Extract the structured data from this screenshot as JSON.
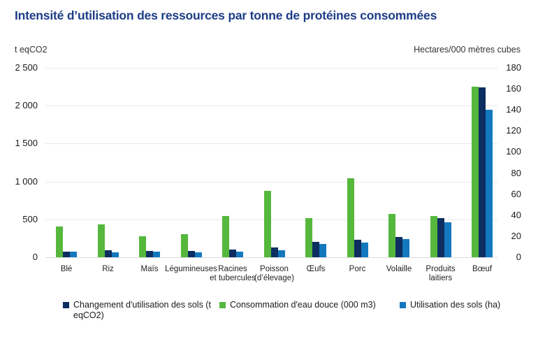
{
  "title": "Intensité d’utilisation des ressources par tonne de protéines consommées",
  "colors": {
    "title": "#1d3d87",
    "grid": "#e9e9e9",
    "baseline": "#dcdcdc",
    "text": "#1a1a1a"
  },
  "chart_data": {
    "type": "bar",
    "title": "Intensité d’utilisation des ressources par tonne de protéines consommées",
    "grid": true,
    "legend_position": "bottom",
    "left_axis": {
      "unit": "t eqCO2",
      "min": 0,
      "max": 2500,
      "tick_step": 500,
      "ticks": [
        "0",
        "500",
        "1 000",
        "1 500",
        "2 000",
        "2 500"
      ]
    },
    "right_axis": {
      "unit": "Hectares/000 mètres cubes",
      "min": 0,
      "max": 180,
      "tick_step": 20,
      "ticks": [
        "0",
        "20",
        "40",
        "60",
        "80",
        "100",
        "120",
        "140",
        "160",
        "180"
      ]
    },
    "categories": [
      "Blé",
      "Riz",
      "Maïs",
      "Légumineuses",
      "Racines et tubercules",
      "Poisson (d’élevage)",
      "Œufs",
      "Porc",
      "Volaille",
      "Produits laitiers",
      "Bœuf"
    ],
    "categories_display": [
      [
        "Blé"
      ],
      [
        "Riz"
      ],
      [
        "Maïs"
      ],
      [
        "Légumineuses"
      ],
      [
        "Racines",
        "et tubercules"
      ],
      [
        "Poisson",
        "(d’élevage)"
      ],
      [
        "Œufs"
      ],
      [
        "Porc"
      ],
      [
        "Volaille"
      ],
      [
        "Produits",
        "laitiers"
      ],
      [
        "Bœuf"
      ]
    ],
    "series": [
      {
        "name": "Changement d'utilisation des sols (t eqCO2)",
        "axis": "left",
        "color": "#0d2e60",
        "values": [
          75,
          90,
          80,
          80,
          100,
          125,
          200,
          230,
          265,
          520,
          2240
        ]
      },
      {
        "name": "Consommation d'eau douce (000 m3)",
        "axis": "right",
        "color": "#55b83c",
        "values": [
          29,
          31.5,
          20,
          22,
          39,
          63,
          37.5,
          75,
          41,
          39,
          162
        ]
      },
      {
        "name": "Utilisation des sols (ha)",
        "axis": "right",
        "color": "#1378be",
        "values": [
          5,
          4.5,
          5,
          4.5,
          5.5,
          6.5,
          12.5,
          14,
          17.5,
          33,
          140
        ]
      }
    ]
  }
}
